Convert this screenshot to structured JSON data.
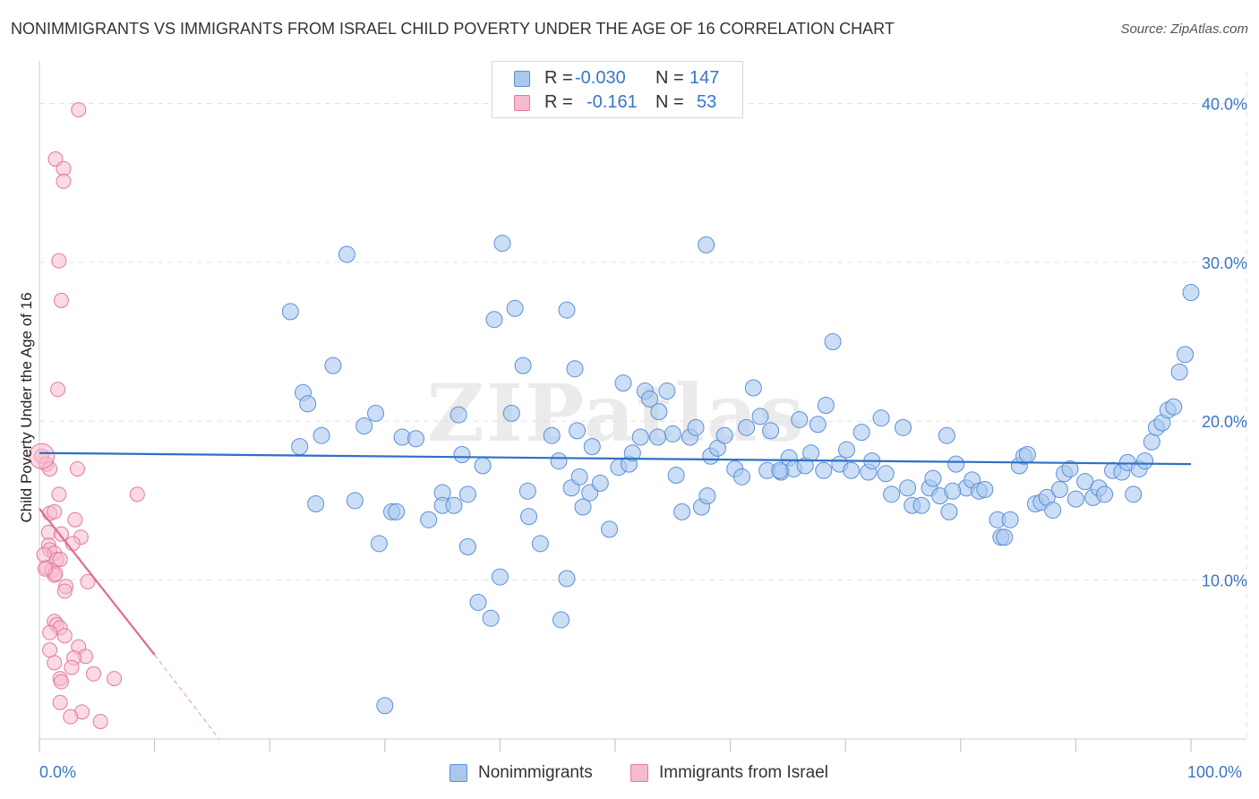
{
  "header": {
    "title": "NONIMMIGRANTS VS IMMIGRANTS FROM ISRAEL CHILD POVERTY UNDER THE AGE OF 16 CORRELATION CHART",
    "source": "Source: ZipAtlas.com"
  },
  "watermark": "ZIPatlas",
  "legend": {
    "rows": [
      {
        "r_label": "R =",
        "r_value": "-0.030",
        "n_label": "N =",
        "n_value": "147"
      },
      {
        "r_label": "R =",
        "r_value": "-0.161",
        "n_label": "N =",
        "n_value": "53"
      }
    ]
  },
  "bottom_legend": {
    "items": [
      "Nonimmigrants",
      "Immigrants from Israel"
    ]
  },
  "colors": {
    "blue_fill": "#a9c8ee",
    "blue_stroke": "#5c8fd6",
    "blue_line": "#2f6fc9",
    "pink_fill": "#f6bccd",
    "pink_stroke": "#e27a9d",
    "pink_line": "#e06a94",
    "tick_text": "#3a74c8",
    "grid": "#e2e2e2"
  },
  "chart_data": {
    "type": "scatter",
    "title": "NONIMMIGRANTS VS IMMIGRANTS FROM ISRAEL CHILD POVERTY UNDER THE AGE OF 16 CORRELATION CHART",
    "xlabel": "",
    "ylabel": "Child Poverty Under the Age of 16",
    "xlim": [
      0,
      100
    ],
    "ylim": [
      0,
      42
    ],
    "x_tick_labels": [
      "0.0%",
      "100.0%"
    ],
    "y_ticks": [
      10,
      20,
      30,
      40
    ],
    "y_tick_labels": [
      "10.0%",
      "20.0%",
      "30.0%",
      "40.0%"
    ],
    "grid": true,
    "legend_position": "top-center",
    "series": [
      {
        "name": "Nonimmigrants",
        "R": -0.03,
        "N": 147,
        "trend": {
          "x": [
            0,
            100
          ],
          "y": [
            18.0,
            17.3
          ]
        },
        "points": [
          [
            21.8,
            26.9
          ],
          [
            26.7,
            30.5
          ],
          [
            25.5,
            23.5
          ],
          [
            22.9,
            21.8
          ],
          [
            23.3,
            21.1
          ],
          [
            24.5,
            19.1
          ],
          [
            28.2,
            19.7
          ],
          [
            29.2,
            20.5
          ],
          [
            24.0,
            14.8
          ],
          [
            27.4,
            15.0
          ],
          [
            29.5,
            12.3
          ],
          [
            30.6,
            14.3
          ],
          [
            31.5,
            19.0
          ],
          [
            32.7,
            18.9
          ],
          [
            33.8,
            13.8
          ],
          [
            35.0,
            15.5
          ],
          [
            35.0,
            14.7
          ],
          [
            36.0,
            14.7
          ],
          [
            36.4,
            20.4
          ],
          [
            36.7,
            17.9
          ],
          [
            37.2,
            15.4
          ],
          [
            37.2,
            12.1
          ],
          [
            38.5,
            17.2
          ],
          [
            39.5,
            26.4
          ],
          [
            40.0,
            10.2
          ],
          [
            38.1,
            8.6
          ],
          [
            39.2,
            7.6
          ],
          [
            40.2,
            31.2
          ],
          [
            41.0,
            20.5
          ],
          [
            41.3,
            27.1
          ],
          [
            42.0,
            23.5
          ],
          [
            42.4,
            15.6
          ],
          [
            42.5,
            14.0
          ],
          [
            43.5,
            12.3
          ],
          [
            44.5,
            19.1
          ],
          [
            45.1,
            17.5
          ],
          [
            46.2,
            15.8
          ],
          [
            45.8,
            10.1
          ],
          [
            45.3,
            7.5
          ],
          [
            45.8,
            27.0
          ],
          [
            46.5,
            23.3
          ],
          [
            46.7,
            19.4
          ],
          [
            47.2,
            14.6
          ],
          [
            47.8,
            15.5
          ],
          [
            48.0,
            18.4
          ],
          [
            48.7,
            16.1
          ],
          [
            49.5,
            13.2
          ],
          [
            50.3,
            17.1
          ],
          [
            50.7,
            22.4
          ],
          [
            51.2,
            17.3
          ],
          [
            51.5,
            18.0
          ],
          [
            52.2,
            19.0
          ],
          [
            52.6,
            21.9
          ],
          [
            53.0,
            21.4
          ],
          [
            53.8,
            20.6
          ],
          [
            54.5,
            21.9
          ],
          [
            55.0,
            19.2
          ],
          [
            55.3,
            16.6
          ],
          [
            55.8,
            14.3
          ],
          [
            56.5,
            19.0
          ],
          [
            57.0,
            19.6
          ],
          [
            57.5,
            14.6
          ],
          [
            58.0,
            15.3
          ],
          [
            58.3,
            17.8
          ],
          [
            58.9,
            18.3
          ],
          [
            59.5,
            19.1
          ],
          [
            60.4,
            17.0
          ],
          [
            61.0,
            16.5
          ],
          [
            61.4,
            19.6
          ],
          [
            62.0,
            22.1
          ],
          [
            62.6,
            20.3
          ],
          [
            63.2,
            16.9
          ],
          [
            63.5,
            19.4
          ],
          [
            64.4,
            16.8
          ],
          [
            65.1,
            17.7
          ],
          [
            65.5,
            17.0
          ],
          [
            66.0,
            20.1
          ],
          [
            66.5,
            17.2
          ],
          [
            67.0,
            18.0
          ],
          [
            67.6,
            19.8
          ],
          [
            68.3,
            21.0
          ],
          [
            68.9,
            25.0
          ],
          [
            69.5,
            17.3
          ],
          [
            70.1,
            18.2
          ],
          [
            70.5,
            16.9
          ],
          [
            71.4,
            19.3
          ],
          [
            72.0,
            16.8
          ],
          [
            72.3,
            17.5
          ],
          [
            73.1,
            20.2
          ],
          [
            73.5,
            16.7
          ],
          [
            74.0,
            15.4
          ],
          [
            75.0,
            19.6
          ],
          [
            75.4,
            15.8
          ],
          [
            75.8,
            14.7
          ],
          [
            76.6,
            14.7
          ],
          [
            77.3,
            15.8
          ],
          [
            77.6,
            16.4
          ],
          [
            78.2,
            15.3
          ],
          [
            78.8,
            19.1
          ],
          [
            79.0,
            14.3
          ],
          [
            79.6,
            17.3
          ],
          [
            80.5,
            15.8
          ],
          [
            81.0,
            16.3
          ],
          [
            81.6,
            15.6
          ],
          [
            82.1,
            15.7
          ],
          [
            83.2,
            13.8
          ],
          [
            83.5,
            12.7
          ],
          [
            83.8,
            12.7
          ],
          [
            85.1,
            17.2
          ],
          [
            85.5,
            17.8
          ],
          [
            85.8,
            17.9
          ],
          [
            86.5,
            14.8
          ],
          [
            87.0,
            14.9
          ],
          [
            87.5,
            15.2
          ],
          [
            88.0,
            14.4
          ],
          [
            88.6,
            15.7
          ],
          [
            89.0,
            16.7
          ],
          [
            89.5,
            17.0
          ],
          [
            90.0,
            15.1
          ],
          [
            90.8,
            16.2
          ],
          [
            91.5,
            15.2
          ],
          [
            92.0,
            15.8
          ],
          [
            92.5,
            15.4
          ],
          [
            93.2,
            16.9
          ],
          [
            94.0,
            16.8
          ],
          [
            94.5,
            17.4
          ],
          [
            95.0,
            15.4
          ],
          [
            95.5,
            17.0
          ],
          [
            96.0,
            17.5
          ],
          [
            96.6,
            18.7
          ],
          [
            97.0,
            19.6
          ],
          [
            97.5,
            19.9
          ],
          [
            98.0,
            20.7
          ],
          [
            98.5,
            20.9
          ],
          [
            99.0,
            23.1
          ],
          [
            99.5,
            24.2
          ],
          [
            100.0,
            28.1
          ],
          [
            57.9,
            31.1
          ],
          [
            64.3,
            16.9
          ],
          [
            30.0,
            2.1
          ],
          [
            68.1,
            16.9
          ],
          [
            84.3,
            13.8
          ],
          [
            79.3,
            15.6
          ],
          [
            31.0,
            14.3
          ],
          [
            22.6,
            18.4
          ],
          [
            46.9,
            16.5
          ],
          [
            53.7,
            19.0
          ]
        ]
      },
      {
        "name": "Immigrants from Israel",
        "R": -0.161,
        "N": 53,
        "trend": {
          "x": [
            0,
            10
          ],
          "y": [
            14.5,
            5.3
          ]
        },
        "trend_extension": {
          "x": [
            10,
            15.6
          ],
          "y": [
            5.3,
            0.0
          ]
        },
        "points": [
          [
            3.4,
            39.6
          ],
          [
            1.4,
            36.5
          ],
          [
            2.1,
            35.9
          ],
          [
            2.1,
            35.1
          ],
          [
            1.7,
            30.1
          ],
          [
            1.9,
            27.6
          ],
          [
            1.6,
            22.0
          ],
          [
            0.2,
            17.8
          ],
          [
            0.6,
            17.3
          ],
          [
            0.9,
            17.0
          ],
          [
            3.3,
            17.0
          ],
          [
            1.7,
            15.4
          ],
          [
            8.5,
            15.4
          ],
          [
            0.9,
            14.2
          ],
          [
            1.3,
            14.3
          ],
          [
            3.1,
            13.8
          ],
          [
            0.8,
            13.0
          ],
          [
            3.6,
            12.7
          ],
          [
            0.8,
            12.2
          ],
          [
            2.9,
            12.3
          ],
          [
            0.9,
            11.9
          ],
          [
            1.3,
            11.7
          ],
          [
            1.5,
            11.3
          ],
          [
            1.8,
            11.3
          ],
          [
            0.6,
            10.8
          ],
          [
            1.1,
            10.6
          ],
          [
            1.3,
            10.3
          ],
          [
            4.2,
            9.9
          ],
          [
            2.3,
            9.6
          ],
          [
            2.2,
            9.3
          ],
          [
            1.3,
            7.4
          ],
          [
            1.5,
            7.2
          ],
          [
            1.8,
            7.0
          ],
          [
            0.9,
            6.7
          ],
          [
            2.2,
            6.5
          ],
          [
            3.4,
            5.8
          ],
          [
            0.9,
            5.6
          ],
          [
            4.0,
            5.2
          ],
          [
            3.0,
            5.1
          ],
          [
            1.3,
            4.8
          ],
          [
            2.8,
            4.5
          ],
          [
            4.7,
            4.1
          ],
          [
            6.5,
            3.8
          ],
          [
            1.8,
            3.8
          ],
          [
            1.9,
            3.6
          ],
          [
            1.8,
            2.3
          ],
          [
            3.7,
            1.7
          ],
          [
            2.7,
            1.4
          ],
          [
            5.3,
            1.1
          ],
          [
            1.4,
            10.4
          ],
          [
            0.5,
            10.7
          ],
          [
            1.9,
            12.9
          ],
          [
            0.4,
            11.6
          ]
        ]
      }
    ]
  }
}
